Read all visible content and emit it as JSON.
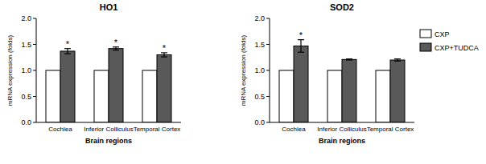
{
  "chart_data": [
    {
      "type": "bar",
      "title": "HO1",
      "x_label": "Brain regions",
      "y_label": "mRNA expression (folds)",
      "categories": [
        "Cochlea",
        "Inferior Colliculus",
        "Temporal Cortex"
      ],
      "series": [
        {
          "name": "CXP",
          "color": "#ffffff",
          "values": [
            1,
            1,
            1
          ]
        },
        {
          "name": "CXP+TUDCA",
          "color": "#595959",
          "values": [
            1.37,
            1.42,
            1.3
          ],
          "errors": [
            0.05,
            0.03,
            0.04
          ],
          "significance": [
            "*",
            "*",
            "*"
          ]
        }
      ],
      "ylim": [
        0,
        2
      ],
      "yticks": [
        {
          "value": 0,
          "label": "0.0"
        },
        0.5,
        {
          "value": 1,
          "label": "1.0"
        },
        1.5,
        {
          "value": 2,
          "label": "2.0"
        }
      ],
      "grid": false
    },
    {
      "type": "bar",
      "title": "SOD2",
      "x_label": "Brain regions",
      "y_label": "mRNA expression (folds)",
      "categories": [
        "Cochlea",
        "Inferior Colliculus",
        "Temporal Cortex"
      ],
      "series": [
        {
          "name": "CXP",
          "color": "#ffffff",
          "values": [
            1,
            1,
            1
          ]
        },
        {
          "name": "CXP+TUDCA",
          "color": "#595959",
          "values": [
            1.47,
            1.21,
            1.2
          ],
          "errors": [
            0.12,
            0.01,
            0.02
          ],
          "significance": [
            "*",
            null,
            null
          ]
        }
      ],
      "ylim": [
        0,
        2
      ],
      "yticks": [
        {
          "value": 0,
          "label": "0.0"
        },
        0.5,
        {
          "value": 1,
          "label": "1.0"
        },
        1.5,
        {
          "value": 2,
          "label": "2.0"
        }
      ],
      "grid": false,
      "legend": "right"
    }
  ]
}
